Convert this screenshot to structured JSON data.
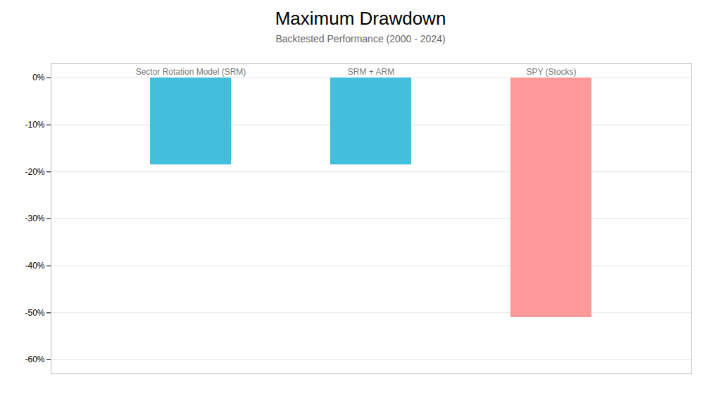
{
  "chart_data": {
    "type": "bar",
    "title": "Maximum Drawdown",
    "subtitle": "Backtested Performance (2000 - 2024)",
    "categories": [
      "Sector Rotation Model (SRM)",
      "SRM + ARM",
      "SPY (Stocks)"
    ],
    "values": [
      -18.5,
      -18.5,
      -51.0
    ],
    "colors": [
      "#42BFDD",
      "#42BFDD",
      "#FF9999"
    ],
    "ylim": [
      -63,
      3
    ],
    "yticks": [
      {
        "value": 0,
        "label": "0%"
      },
      {
        "value": -10,
        "label": "-10%"
      },
      {
        "value": -20,
        "label": "-20%"
      },
      {
        "value": -30,
        "label": "-30%"
      },
      {
        "value": -40,
        "label": "-40%"
      },
      {
        "value": -50,
        "label": "-50%"
      },
      {
        "value": -60,
        "label": "-60%"
      }
    ],
    "grid": true,
    "tick_labels": "y"
  }
}
